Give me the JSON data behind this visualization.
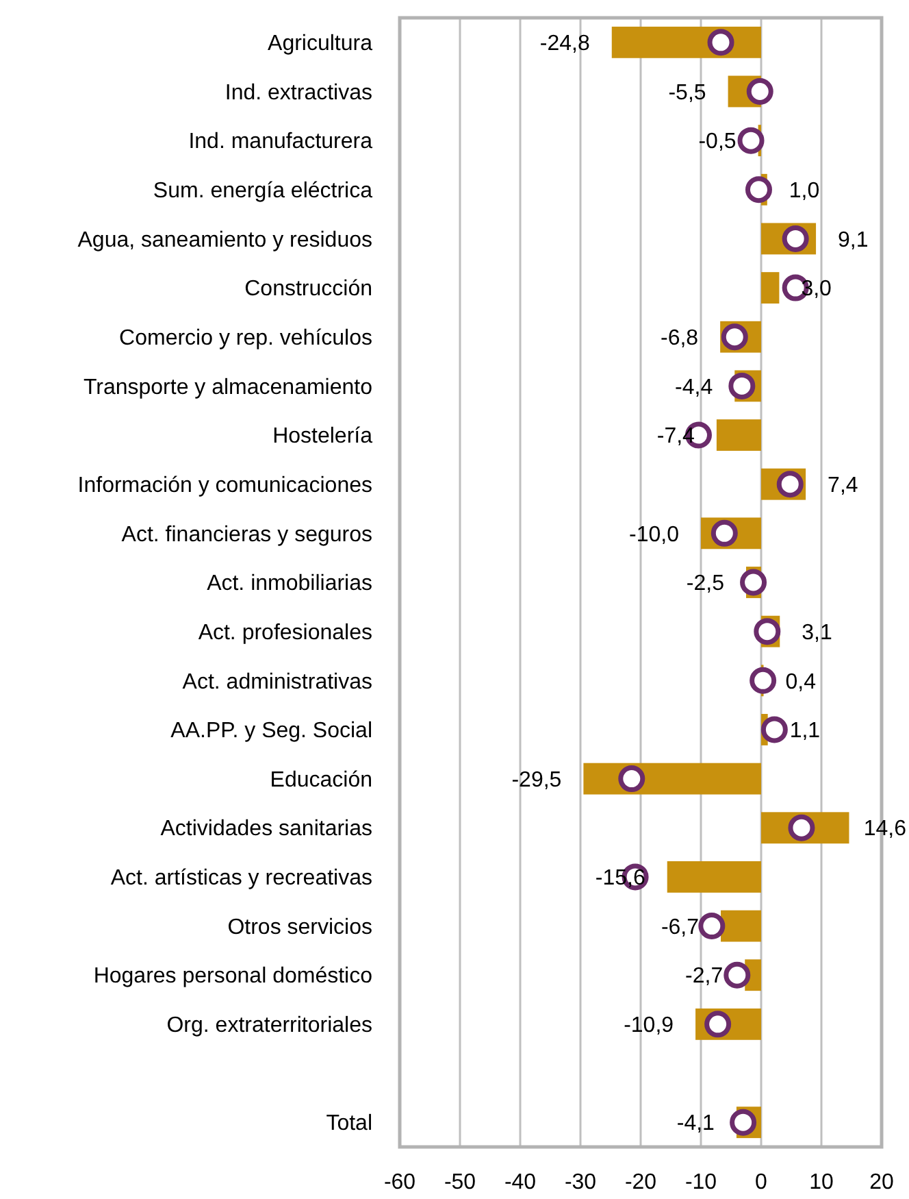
{
  "chart_data": {
    "type": "bar",
    "orientation": "horizontal",
    "categories": [
      "Agricultura",
      "Ind. extractivas",
      "Ind. manufacturera",
      "Sum. energía eléctrica",
      "Agua, saneamiento y residuos",
      "Construcción",
      "Comercio y rep. vehículos",
      "Transporte y almacenamiento",
      "Hostelería",
      "Información y comunicaciones",
      "Act. financieras y seguros",
      "Act. inmobiliarias",
      "Act. profesionales",
      "Act. administrativas",
      "AA.PP. y Seg. Social",
      "Educación",
      "Actividades sanitarias",
      "Act. artísticas y recreativas",
      "Otros servicios",
      "Hogares personal doméstico",
      "Org. extraterritoriales",
      null,
      "Total"
    ],
    "series": [
      {
        "color": "#c8910e",
        "values": [
          -24.8,
          -5.5,
          -0.5,
          1.0,
          9.1,
          3.0,
          -6.8,
          -4.4,
          -7.4,
          7.4,
          -10.0,
          -2.5,
          3.1,
          0.4,
          1.1,
          -29.5,
          14.6,
          -15.6,
          -6.7,
          -2.7,
          -10.9,
          null,
          -4.1
        ],
        "value_labels": [
          "-24,8",
          "-5,5",
          "-0,5",
          "1,0",
          "9,1",
          "3,0",
          "-6,8",
          "-4,4",
          "-7,4",
          "7,4",
          "-10,0",
          "-2,5",
          "3,1",
          "0,4",
          "1,1",
          "-29,5",
          "14,6",
          "-15,6",
          "-6,7",
          "-2,7",
          "-10,9",
          null,
          "-4,1"
        ]
      },
      {
        "type": "scatter",
        "color": "#6b2c6a",
        "marker": "circle",
        "values": [
          -6.7,
          -0.2,
          -1.7,
          -0.4,
          5.7,
          5.7,
          -4.4,
          -3.2,
          -10.4,
          4.8,
          -6.1,
          -1.3,
          1.0,
          0.3,
          2.2,
          -21.5,
          6.7,
          -20.9,
          -8.2,
          -4.0,
          -7.2,
          null,
          -3.0
        ]
      }
    ],
    "xlim": [
      -60,
      20
    ],
    "xticks": [
      -60,
      -50,
      -40,
      -30,
      -20,
      -10,
      0,
      10,
      20
    ],
    "grid": "x"
  }
}
